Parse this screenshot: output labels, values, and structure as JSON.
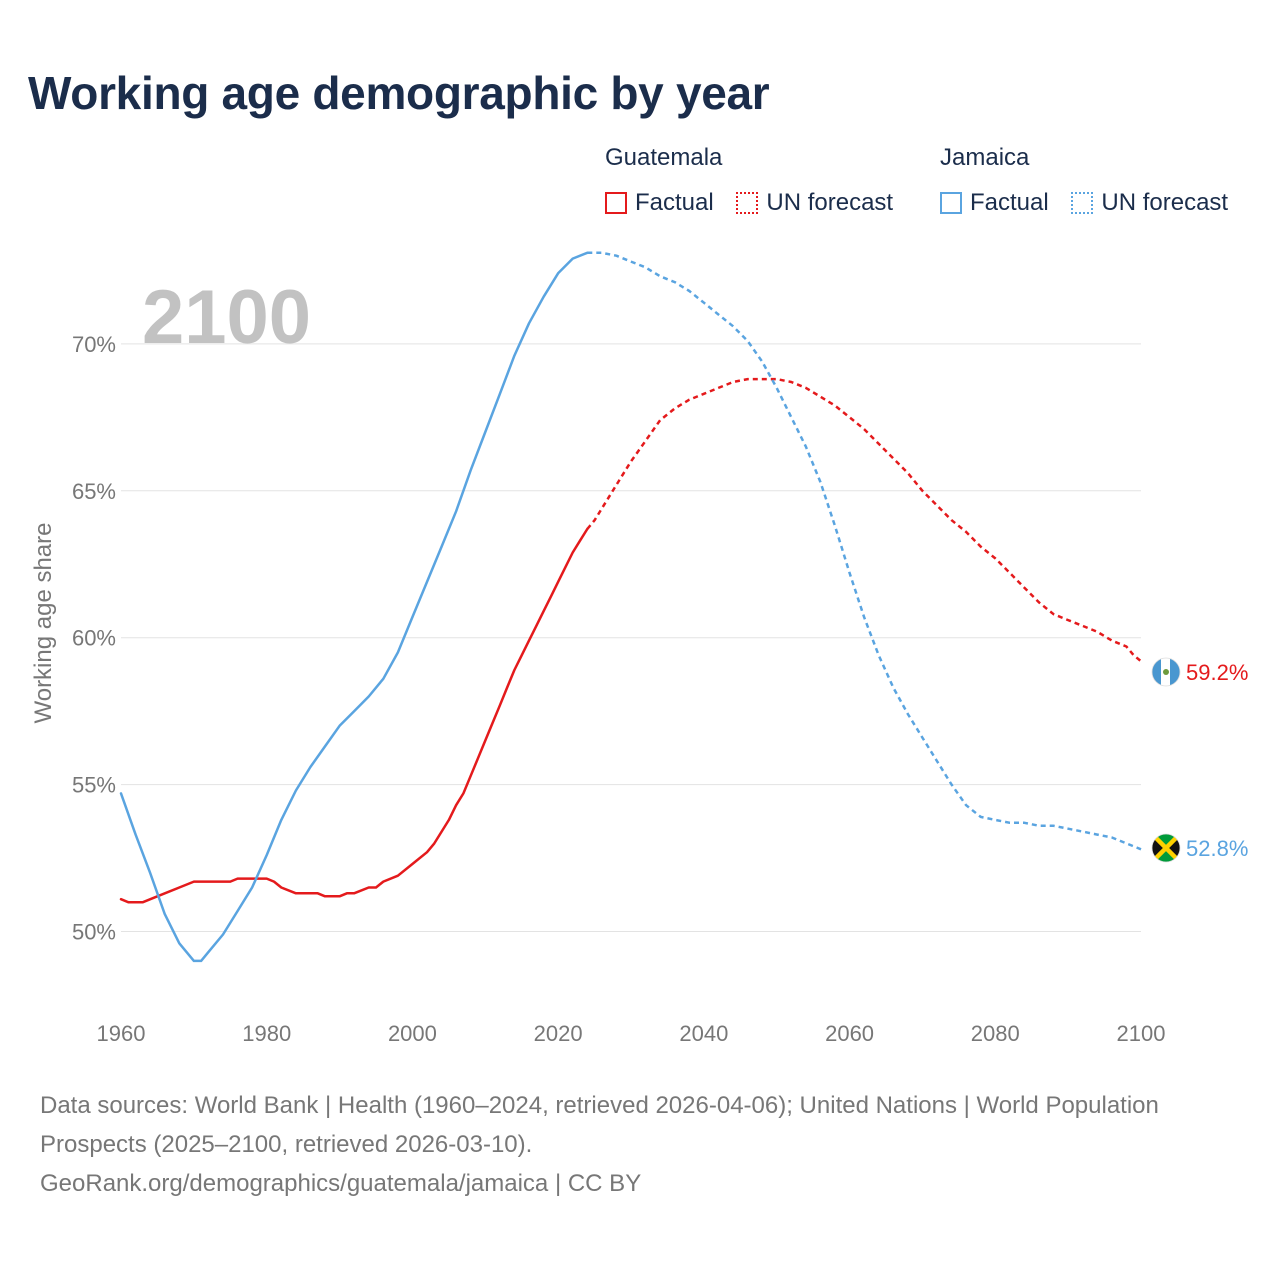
{
  "title": "Working age demographic by year",
  "legend": {
    "groups": [
      {
        "name": "Guatemala",
        "factual_label": "Factual",
        "forecast_label": "UN forecast",
        "color": "#e41a1c"
      },
      {
        "name": "Jamaica",
        "factual_label": "Factual",
        "forecast_label": "UN forecast",
        "color": "#5aa4e0"
      }
    ]
  },
  "year_label": "2100",
  "end_labels": {
    "guatemala": "59.2%",
    "jamaica": "52.8%"
  },
  "footer": {
    "sources": "Data sources: World Bank | Health (1960–2024, retrieved 2026-04-06); United Nations | World Population Prospects (2025–2100, retrieved 2026-03-10).",
    "credit": "GeoRank.org/demographics/guatemala/jamaica | CC BY"
  },
  "chart_data": {
    "type": "line",
    "title": "Working age demographic by year",
    "xlabel": "",
    "ylabel": "Working age share",
    "xlim": [
      1960,
      2100
    ],
    "ylim": [
      47.5,
      73.5
    ],
    "x_ticks": [
      1960,
      1980,
      2000,
      2020,
      2040,
      2060,
      2080,
      2100
    ],
    "y_ticks": [
      50,
      55,
      60,
      65,
      70
    ],
    "y_tick_labels": [
      "50%",
      "55%",
      "60%",
      "65%",
      "70%"
    ],
    "factual_end_year": 2024,
    "series": [
      {
        "name": "Guatemala",
        "color": "#e41a1c",
        "points": [
          [
            1960,
            51.1
          ],
          [
            1961,
            51.0
          ],
          [
            1963,
            51.0
          ],
          [
            1965,
            51.2
          ],
          [
            1968,
            51.5
          ],
          [
            1970,
            51.7
          ],
          [
            1975,
            51.7
          ],
          [
            1976,
            51.8
          ],
          [
            1980,
            51.8
          ],
          [
            1981,
            51.7
          ],
          [
            1982,
            51.5
          ],
          [
            1984,
            51.3
          ],
          [
            1987,
            51.3
          ],
          [
            1988,
            51.2
          ],
          [
            1990,
            51.2
          ],
          [
            1991,
            51.3
          ],
          [
            1992,
            51.3
          ],
          [
            1994,
            51.5
          ],
          [
            1995,
            51.5
          ],
          [
            1996,
            51.7
          ],
          [
            1998,
            51.9
          ],
          [
            2000,
            52.3
          ],
          [
            2002,
            52.7
          ],
          [
            2003,
            53.0
          ],
          [
            2004,
            53.4
          ],
          [
            2005,
            53.8
          ],
          [
            2006,
            54.3
          ],
          [
            2007,
            54.7
          ],
          [
            2008,
            55.3
          ],
          [
            2009,
            55.9
          ],
          [
            2010,
            56.5
          ],
          [
            2011,
            57.1
          ],
          [
            2012,
            57.7
          ],
          [
            2013,
            58.3
          ],
          [
            2014,
            58.9
          ],
          [
            2015,
            59.4
          ],
          [
            2016,
            59.9
          ],
          [
            2017,
            60.4
          ],
          [
            2018,
            60.9
          ],
          [
            2019,
            61.4
          ],
          [
            2020,
            61.9
          ],
          [
            2021,
            62.4
          ],
          [
            2022,
            62.9
          ],
          [
            2023,
            63.3
          ],
          [
            2024,
            63.7
          ],
          [
            2025,
            64.0
          ],
          [
            2026,
            64.4
          ],
          [
            2028,
            65.2
          ],
          [
            2030,
            66.0
          ],
          [
            2032,
            66.7
          ],
          [
            2034,
            67.4
          ],
          [
            2036,
            67.8
          ],
          [
            2038,
            68.1
          ],
          [
            2040,
            68.3
          ],
          [
            2042,
            68.5
          ],
          [
            2044,
            68.7
          ],
          [
            2046,
            68.8
          ],
          [
            2048,
            68.8
          ],
          [
            2050,
            68.8
          ],
          [
            2052,
            68.7
          ],
          [
            2054,
            68.5
          ],
          [
            2056,
            68.2
          ],
          [
            2058,
            67.9
          ],
          [
            2060,
            67.5
          ],
          [
            2062,
            67.1
          ],
          [
            2064,
            66.6
          ],
          [
            2066,
            66.1
          ],
          [
            2068,
            65.6
          ],
          [
            2070,
            65.0
          ],
          [
            2072,
            64.5
          ],
          [
            2074,
            64.0
          ],
          [
            2076,
            63.6
          ],
          [
            2078,
            63.1
          ],
          [
            2080,
            62.7
          ],
          [
            2082,
            62.2
          ],
          [
            2084,
            61.7
          ],
          [
            2086,
            61.2
          ],
          [
            2088,
            60.8
          ],
          [
            2090,
            60.6
          ],
          [
            2092,
            60.4
          ],
          [
            2094,
            60.2
          ],
          [
            2096,
            59.9
          ],
          [
            2098,
            59.7
          ],
          [
            2099,
            59.4
          ],
          [
            2100,
            59.2
          ]
        ]
      },
      {
        "name": "Jamaica",
        "color": "#5aa4e0",
        "points": [
          [
            1960,
            54.7
          ],
          [
            1962,
            53.3
          ],
          [
            1964,
            52.0
          ],
          [
            1966,
            50.6
          ],
          [
            1968,
            49.6
          ],
          [
            1970,
            49.0
          ],
          [
            1971,
            49.0
          ],
          [
            1972,
            49.3
          ],
          [
            1974,
            49.9
          ],
          [
            1976,
            50.7
          ],
          [
            1978,
            51.5
          ],
          [
            1980,
            52.6
          ],
          [
            1982,
            53.8
          ],
          [
            1984,
            54.8
          ],
          [
            1986,
            55.6
          ],
          [
            1988,
            56.3
          ],
          [
            1990,
            57.0
          ],
          [
            1992,
            57.5
          ],
          [
            1994,
            58.0
          ],
          [
            1996,
            58.6
          ],
          [
            1998,
            59.5
          ],
          [
            2000,
            60.7
          ],
          [
            2002,
            61.9
          ],
          [
            2004,
            63.1
          ],
          [
            2006,
            64.3
          ],
          [
            2008,
            65.7
          ],
          [
            2010,
            67.0
          ],
          [
            2012,
            68.3
          ],
          [
            2014,
            69.6
          ],
          [
            2016,
            70.7
          ],
          [
            2018,
            71.6
          ],
          [
            2020,
            72.4
          ],
          [
            2022,
            72.9
          ],
          [
            2024,
            73.1
          ],
          [
            2026,
            73.1
          ],
          [
            2028,
            73.0
          ],
          [
            2030,
            72.8
          ],
          [
            2032,
            72.6
          ],
          [
            2034,
            72.3
          ],
          [
            2036,
            72.1
          ],
          [
            2038,
            71.8
          ],
          [
            2040,
            71.4
          ],
          [
            2042,
            71.0
          ],
          [
            2044,
            70.6
          ],
          [
            2046,
            70.1
          ],
          [
            2048,
            69.4
          ],
          [
            2050,
            68.5
          ],
          [
            2052,
            67.5
          ],
          [
            2054,
            66.5
          ],
          [
            2056,
            65.3
          ],
          [
            2058,
            63.8
          ],
          [
            2060,
            62.2
          ],
          [
            2062,
            60.7
          ],
          [
            2064,
            59.4
          ],
          [
            2066,
            58.3
          ],
          [
            2068,
            57.4
          ],
          [
            2070,
            56.6
          ],
          [
            2072,
            55.8
          ],
          [
            2074,
            55.0
          ],
          [
            2076,
            54.3
          ],
          [
            2078,
            53.9
          ],
          [
            2080,
            53.8
          ],
          [
            2082,
            53.7
          ],
          [
            2084,
            53.7
          ],
          [
            2086,
            53.6
          ],
          [
            2088,
            53.6
          ],
          [
            2090,
            53.5
          ],
          [
            2092,
            53.4
          ],
          [
            2094,
            53.3
          ],
          [
            2096,
            53.2
          ],
          [
            2098,
            53.0
          ],
          [
            2100,
            52.8
          ]
        ]
      }
    ]
  }
}
